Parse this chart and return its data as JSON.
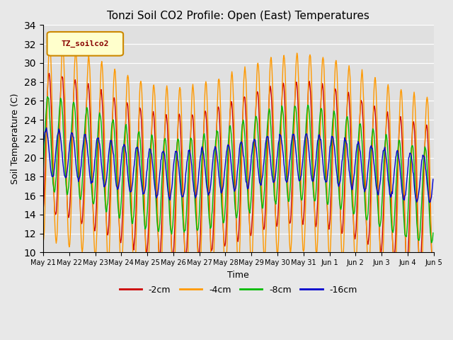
{
  "title": "Tonzi Soil CO2 Profile: Open (East) Temperatures",
  "ylabel": "Soil Temperature (C)",
  "xlabel": "Time",
  "ylim": [
    10,
    34
  ],
  "yticks": [
    10,
    12,
    14,
    16,
    18,
    20,
    22,
    24,
    26,
    28,
    30,
    32,
    34
  ],
  "legend_label": "TZ_soilco2",
  "series_labels": [
    "-2cm",
    "-4cm",
    "-8cm",
    "-16cm"
  ],
  "series_colors": [
    "#cc0000",
    "#ff9900",
    "#00bb00",
    "#0000cc"
  ],
  "background_color": "#e8e8e8",
  "plot_bg_color": "#e0e0e0",
  "xtick_labels": [
    "May 21",
    "May 22",
    "May 23",
    "May 24",
    "May 25",
    "May 26",
    "May 27",
    "May 28",
    "May 29",
    "May 30",
    "May 31",
    "Jun 1",
    "Jun 2",
    "Jun 3",
    "Jun 4",
    "Jun 5"
  ],
  "n_days": 15,
  "points_per_day": 48,
  "cycles_per_day": 2
}
